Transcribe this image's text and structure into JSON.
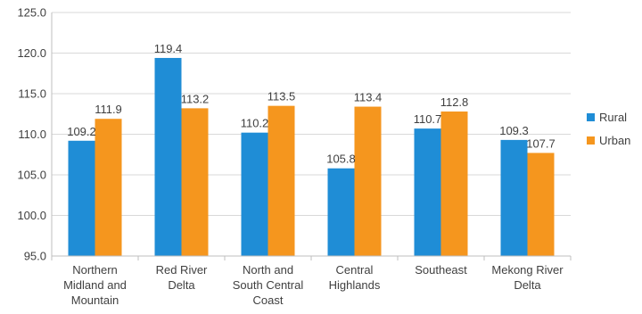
{
  "chart_data": {
    "type": "bar",
    "categories": [
      [
        "Northern",
        "Midland and",
        "Mountain"
      ],
      [
        "Red River",
        "Delta"
      ],
      [
        "North and",
        "South Central",
        "Coast"
      ],
      [
        "Central",
        "Highlands"
      ],
      [
        "Southeast"
      ],
      [
        "Mekong River",
        "Delta"
      ]
    ],
    "series": [
      {
        "name": "Rural",
        "color": "#1F8DD6",
        "values": [
          109.2,
          119.4,
          110.2,
          105.8,
          110.7,
          109.3
        ]
      },
      {
        "name": "Urban",
        "color": "#F5961E",
        "values": [
          111.9,
          113.2,
          113.5,
          113.4,
          112.8,
          107.7
        ]
      }
    ],
    "y_ticks": [
      "95.0",
      "100.0",
      "105.0",
      "110.0",
      "115.0",
      "120.0",
      "125.0"
    ],
    "ylim": [
      95,
      125
    ],
    "grid": true,
    "legend_position": "right"
  }
}
